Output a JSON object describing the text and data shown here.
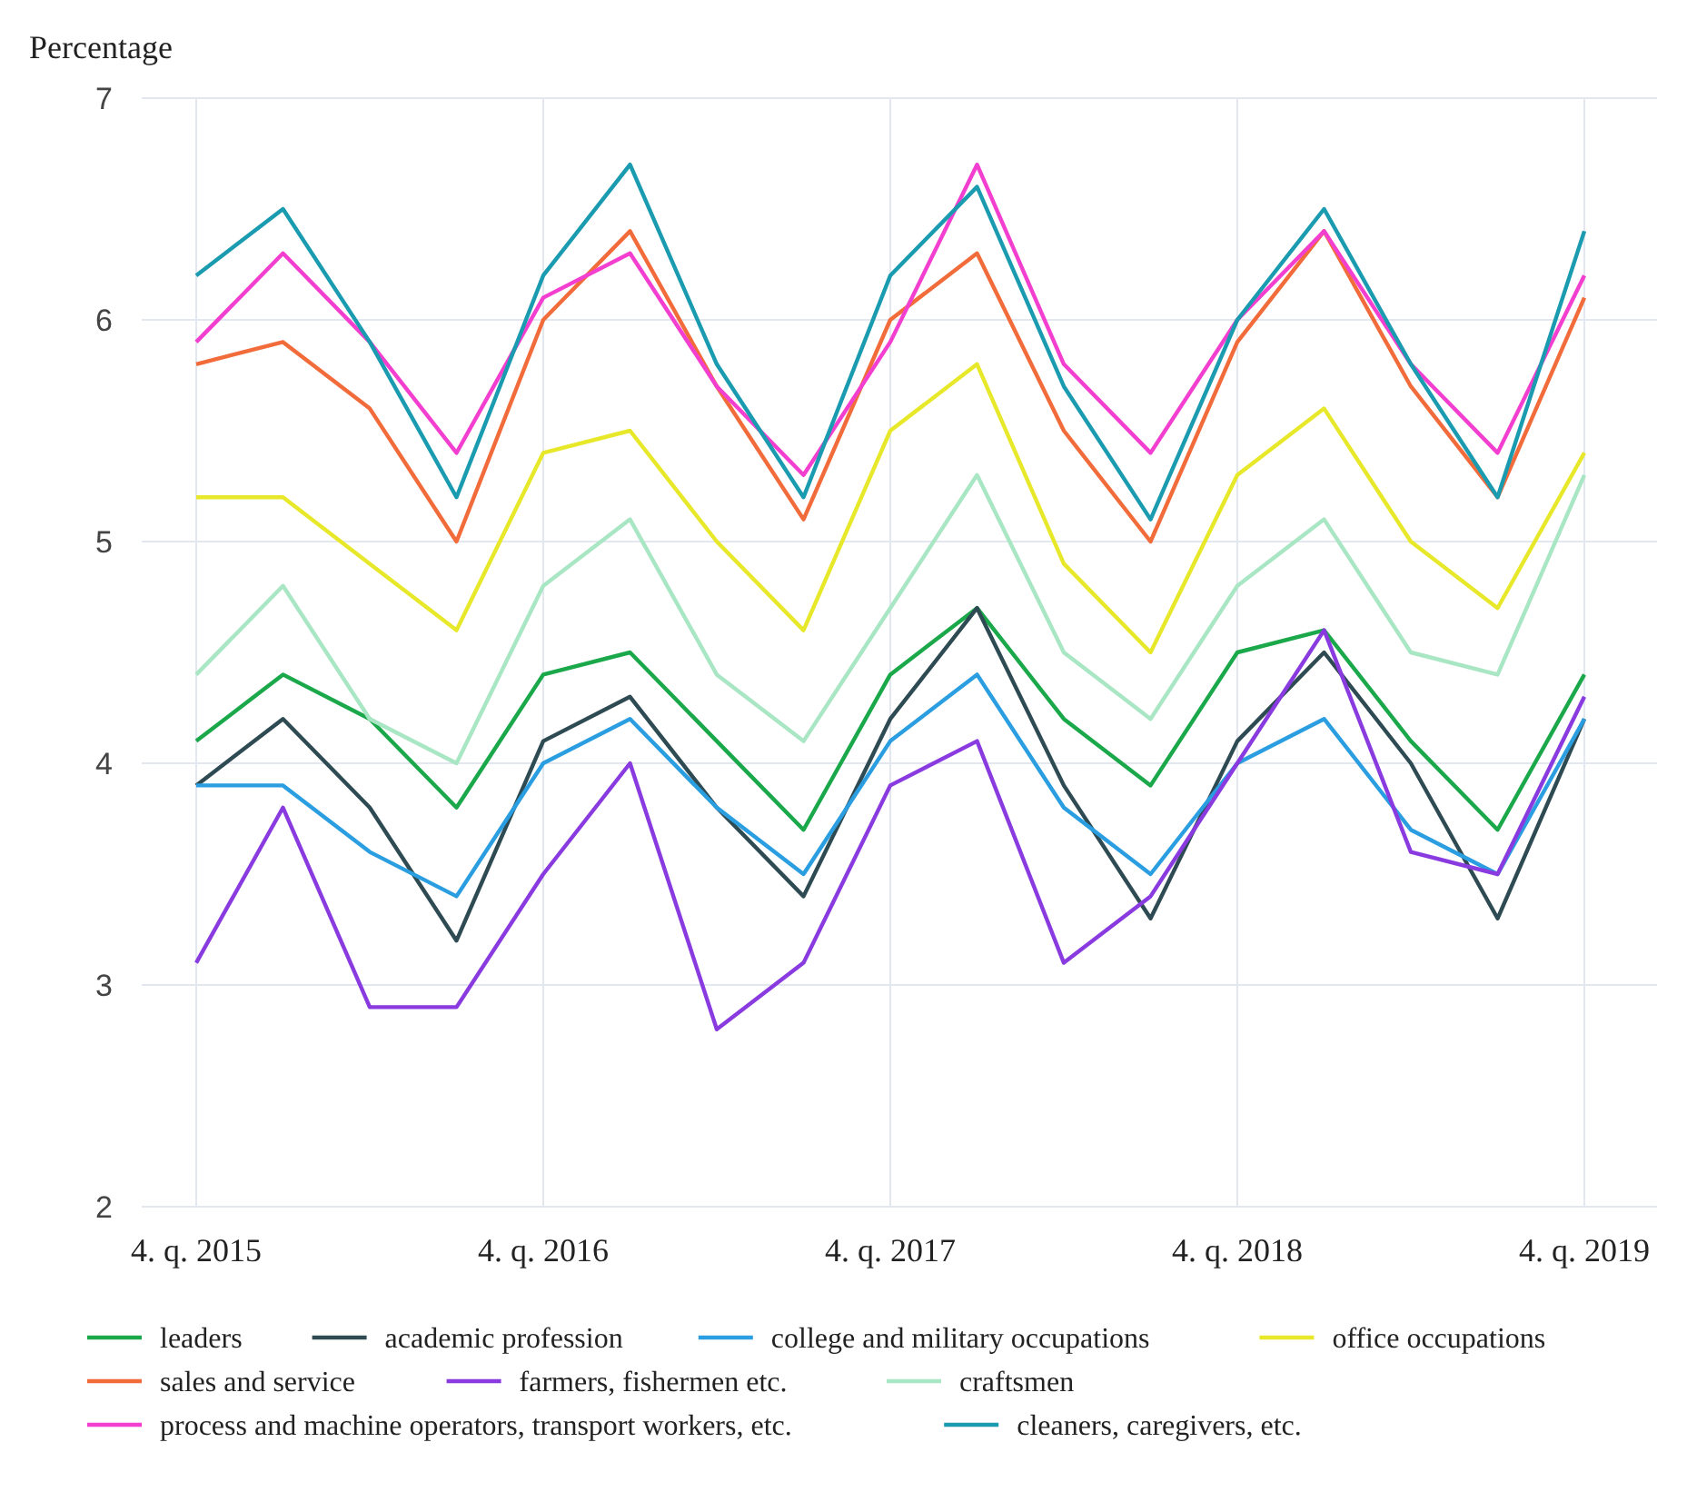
{
  "chart_data": {
    "type": "line",
    "ylabel": "Percentage",
    "categories": [
      "4. q. 2015",
      null,
      null,
      null,
      "4. q. 2016",
      null,
      null,
      null,
      "4. q. 2017",
      null,
      null,
      null,
      "4. q. 2018",
      null,
      null,
      null,
      "4. q. 2019"
    ],
    "ylim": [
      2,
      7
    ],
    "yticks": [
      2,
      3,
      4,
      5,
      6,
      7
    ],
    "grid": true,
    "legend": "bottom",
    "series": [
      {
        "name": "leaders",
        "color": "#1aa84a",
        "values": [
          4.1,
          4.4,
          4.2,
          3.8,
          4.4,
          4.5,
          4.1,
          3.7,
          4.4,
          4.7,
          4.2,
          3.9,
          4.5,
          4.6,
          4.1,
          3.7,
          4.4
        ]
      },
      {
        "name": "academic profession",
        "color": "#2e4a52",
        "values": [
          3.9,
          4.2,
          3.8,
          3.2,
          4.1,
          4.3,
          3.8,
          3.4,
          4.2,
          4.7,
          3.9,
          3.3,
          4.1,
          4.5,
          4.0,
          3.3,
          4.2
        ]
      },
      {
        "name": "college and military occupations",
        "color": "#2a9ee0",
        "values": [
          3.9,
          3.9,
          3.6,
          3.4,
          4.0,
          4.2,
          3.8,
          3.5,
          4.1,
          4.4,
          3.8,
          3.5,
          4.0,
          4.2,
          3.7,
          3.5,
          4.2
        ]
      },
      {
        "name": "office occupations",
        "color": "#e8e82a",
        "values": [
          5.2,
          5.2,
          4.9,
          4.6,
          5.4,
          5.5,
          5.0,
          4.6,
          5.5,
          5.8,
          4.9,
          4.5,
          5.3,
          5.6,
          5.0,
          4.7,
          5.4
        ]
      },
      {
        "name": "sales and service",
        "color": "#f26b3a",
        "values": [
          5.8,
          5.9,
          5.6,
          5.0,
          6.0,
          6.4,
          5.7,
          5.1,
          6.0,
          6.3,
          5.5,
          5.0,
          5.9,
          6.4,
          5.7,
          5.2,
          6.1
        ]
      },
      {
        "name": "farmers, fishermen etc.",
        "color": "#8a3be0",
        "values": [
          3.1,
          3.8,
          2.9,
          2.9,
          3.5,
          4.0,
          2.8,
          3.1,
          3.9,
          4.1,
          3.1,
          3.4,
          4.0,
          4.6,
          3.6,
          3.5,
          4.3
        ]
      },
      {
        "name": "craftsmen",
        "color": "#a8e6c4",
        "values": [
          4.4,
          4.8,
          4.2,
          4.0,
          4.8,
          5.1,
          4.4,
          4.1,
          4.7,
          5.3,
          4.5,
          4.2,
          4.8,
          5.1,
          4.5,
          4.4,
          5.3
        ]
      },
      {
        "name": "process and machine operators, transport workers, etc.",
        "color": "#f23fcf",
        "values": [
          5.9,
          6.3,
          5.9,
          5.4,
          6.1,
          6.3,
          5.7,
          5.3,
          5.9,
          6.7,
          5.8,
          5.4,
          6.0,
          6.4,
          5.8,
          5.4,
          6.2
        ]
      },
      {
        "name": "cleaners, caregivers, etc.",
        "color": "#1a9bb0",
        "values": [
          6.2,
          6.5,
          5.9,
          5.2,
          6.2,
          6.7,
          5.8,
          5.2,
          6.2,
          6.6,
          5.7,
          5.1,
          6.0,
          6.5,
          5.8,
          5.2,
          6.4
        ]
      }
    ]
  }
}
